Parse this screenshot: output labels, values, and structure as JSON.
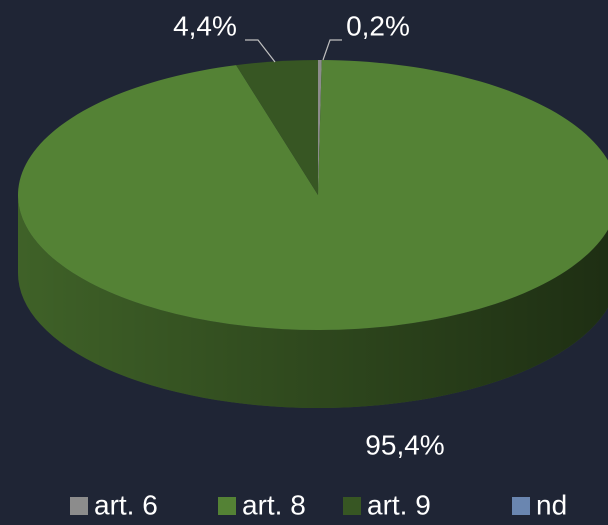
{
  "chart_data": {
    "type": "pie",
    "categories": [
      "art. 6",
      "art. 8",
      "art. 9",
      "nd"
    ],
    "values": [
      0.2,
      95.4,
      4.4,
      0
    ],
    "value_labels": [
      "0,2%",
      "95,4%",
      "4,4%",
      null
    ],
    "colors": [
      "#8c8c8c",
      "#548235",
      "#375623",
      "#6a86b0"
    ],
    "legend": "bottom"
  }
}
